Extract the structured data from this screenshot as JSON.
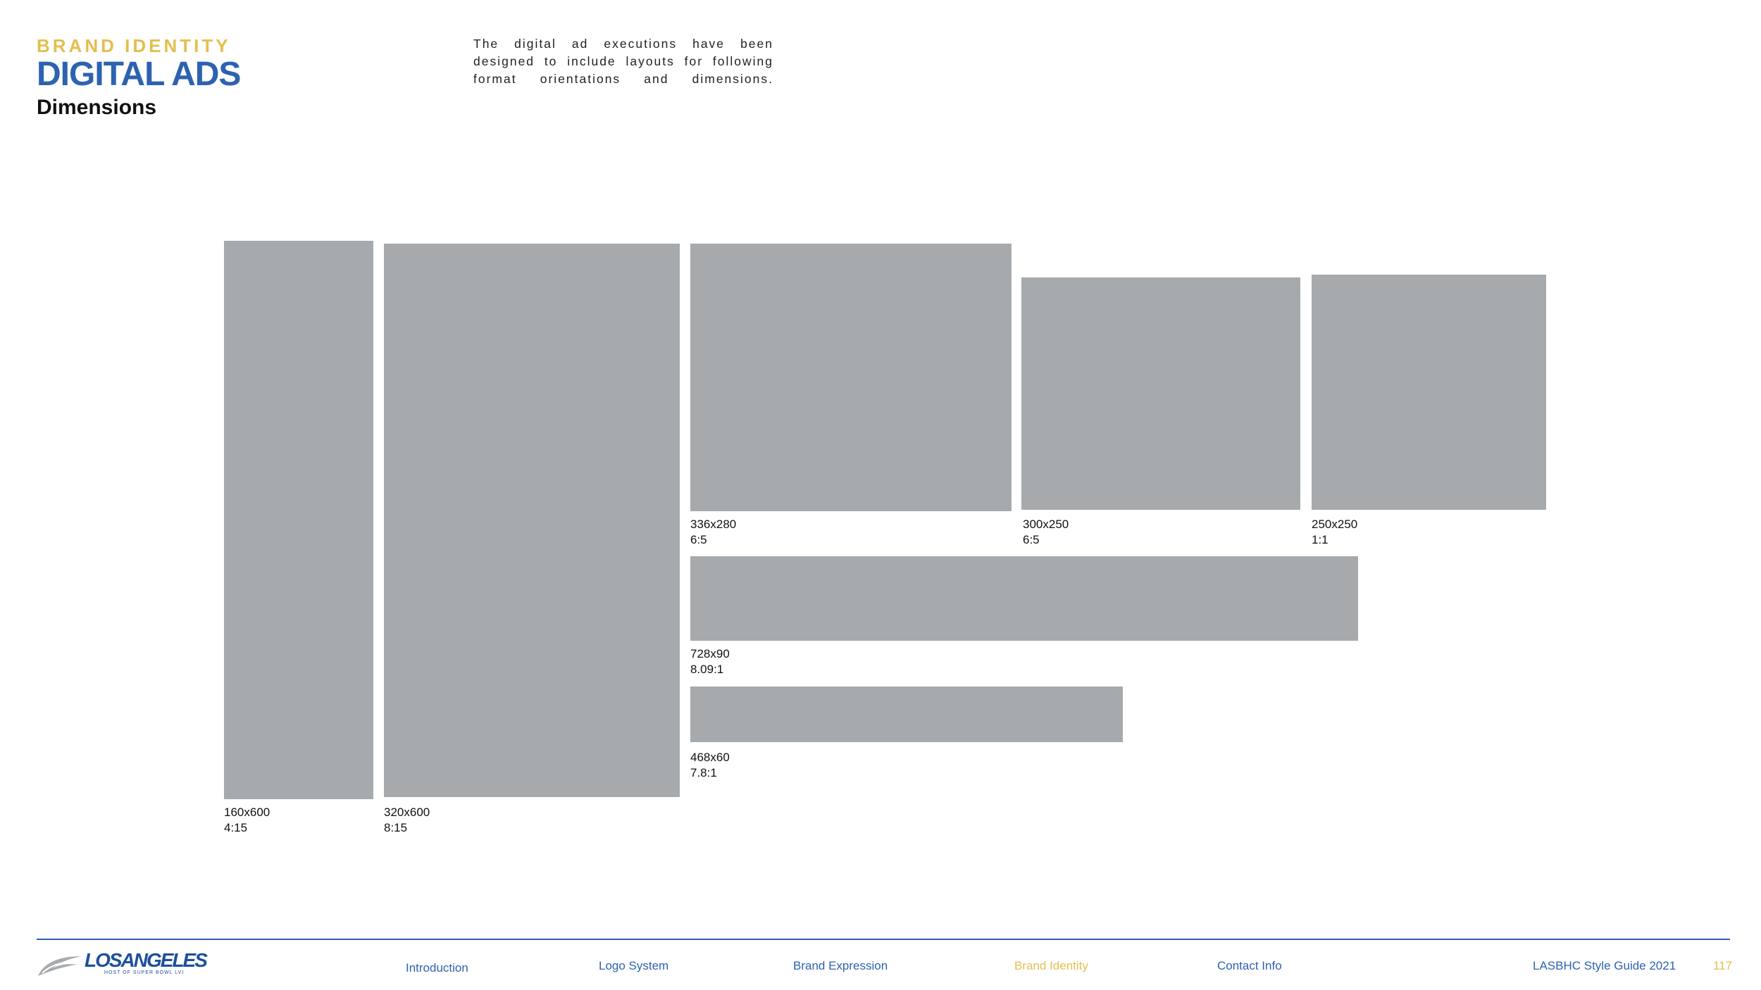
{
  "header": {
    "eyebrow": "BRAND IDENTITY",
    "title": "DIGITAL ADS",
    "subtitle": "Dimensions"
  },
  "intro": {
    "lines": [
      "The digital ad executions have been",
      "designed to include layouts for following",
      "format orientations and dimensions."
    ]
  },
  "ads": [
    {
      "size": "160x600",
      "ratio": "4:15"
    },
    {
      "size": "320x600",
      "ratio": "8:15"
    },
    {
      "size": "336x280",
      "ratio": "6:5"
    },
    {
      "size": "300x250",
      "ratio": "6:5"
    },
    {
      "size": "250x250",
      "ratio": "1:1"
    },
    {
      "size": "728x90",
      "ratio": "8.09:1"
    },
    {
      "size": "468x60",
      "ratio": "7.8:1"
    }
  ],
  "footer": {
    "logo_text": "LOSANGELES",
    "logo_tagline": "HOST OF SUPER BOWL LVI",
    "nav": [
      {
        "label": "Introduction",
        "active": false
      },
      {
        "label": "Logo System",
        "active": false
      },
      {
        "label": "Brand Expression",
        "active": false
      },
      {
        "label": "Brand Identity",
        "active": true
      },
      {
        "label": "Contact Info",
        "active": false
      }
    ],
    "guide_title": "LASBHC Style Guide 2021",
    "page_number": "117"
  },
  "colors": {
    "accent_gold": "#e3bf4f",
    "brand_blue": "#2d62b0",
    "placeholder_gray": "#a6aaad"
  }
}
